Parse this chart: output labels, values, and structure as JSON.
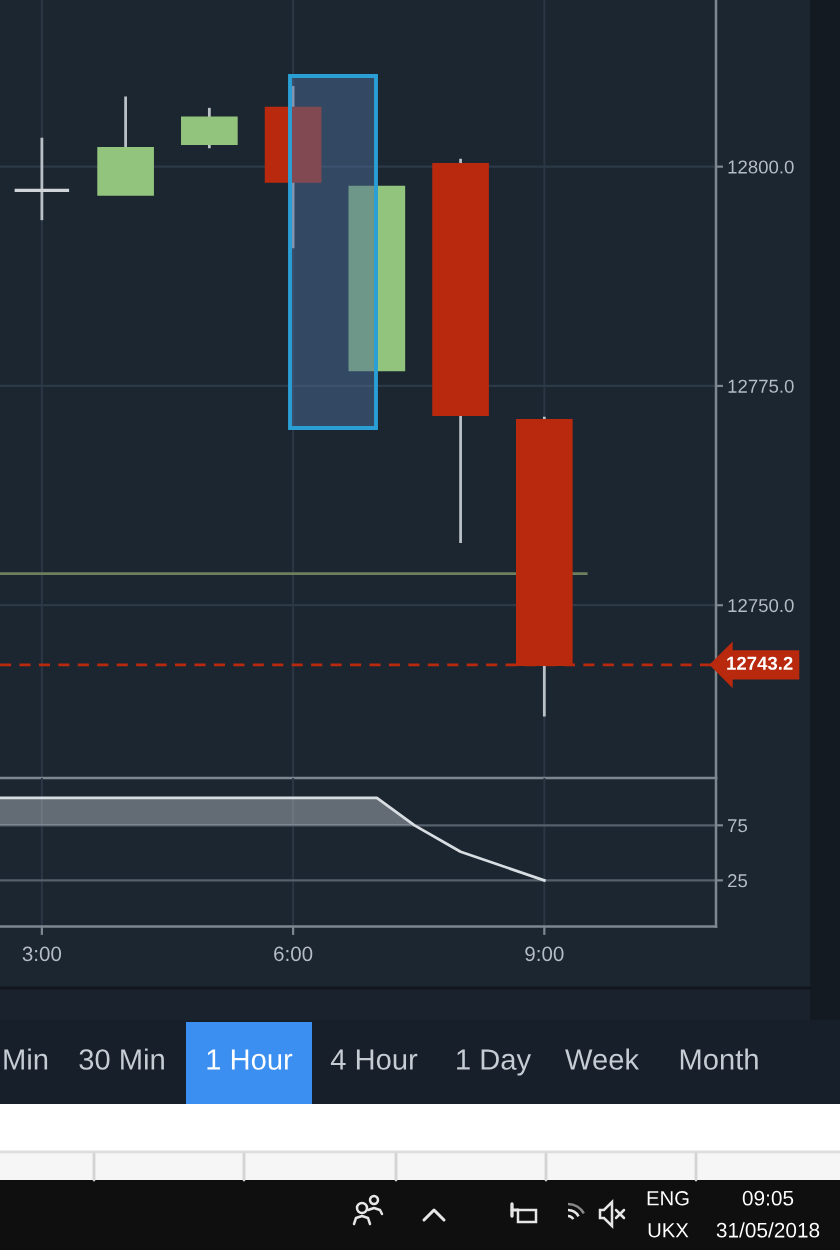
{
  "chart_data": [
    {
      "type": "candlestick",
      "x": [
        3,
        4,
        5,
        6,
        7,
        8,
        9
      ],
      "ohlc": [
        [
          12797.3,
          12803.3,
          12793.9,
          12797.3
        ],
        [
          12796.8,
          12808.0,
          12796.8,
          12802.1
        ],
        [
          12802.6,
          12806.7,
          12802.1,
          12805.6
        ],
        [
          12806.7,
          12809.2,
          12790.7,
          12798.3
        ],
        [
          12776.8,
          12797.7,
          12776.8,
          12797.7
        ],
        [
          12800.3,
          12800.9,
          12757.1,
          12771.7
        ],
        [
          12771.1,
          12771.5,
          12737.3,
          12743.2
        ]
      ],
      "colors": [
        "#d0d4d8",
        "#93c47d",
        "#93c47d",
        "#b8290d",
        "#93c47d",
        "#b8290d",
        "#b8290d"
      ],
      "series": [
        {
          "type": "line",
          "x": [
            2.5,
            9.5
          ],
          "values": [
            12753.6,
            12753.6
          ],
          "color": "#6f7f5e"
        }
      ],
      "ref_lines": [
        {
          "axis": "y",
          "value": 12743.2,
          "label": "12743.2",
          "color": "#b8290d",
          "line_style": "dashed"
        }
      ],
      "xlim": [
        2.5,
        11.05
      ],
      "ylim": [
        12730.3,
        12819.0
      ],
      "xticks": [
        {
          "value": 3,
          "label": null
        },
        {
          "value": 6,
          "label": null
        },
        {
          "value": 9,
          "label": null
        }
      ],
      "yticks": [
        {
          "value": 12750,
          "label": "12750.0"
        },
        {
          "value": 12775,
          "label": "12775.0"
        },
        {
          "value": 12800,
          "label": "12800.0"
        }
      ],
      "tick_labels": "y",
      "grid": true
    },
    {
      "type": "line",
      "x": [
        2.5,
        3,
        4,
        5,
        6,
        7,
        7.45,
        8,
        9
      ],
      "series": [
        {
          "color": "#d8dde2",
          "values": [
            100,
            100,
            100,
            100,
            100,
            100,
            75,
            51,
            25
          ],
          "lower": [
            75,
            75,
            75,
            75,
            75,
            75,
            75,
            null,
            null
          ],
          "upper": [
            100,
            100,
            100,
            100,
            100,
            100,
            75,
            null,
            null
          ]
        }
      ],
      "xlim": [
        2.5,
        11.05
      ],
      "ylim": [
        -17,
        118
      ],
      "xticks": [
        {
          "value": 3,
          "label": "3:00"
        },
        {
          "value": 6,
          "label": "6:00"
        },
        {
          "value": 9,
          "label": "9:00"
        }
      ],
      "yticks": [
        25,
        75
      ],
      "grid": true
    },
    {
      "type": "other",
      "annotations": [
        "Min",
        "30 Min",
        "1 Hour",
        "4 Hour",
        "1 Day",
        "Week",
        "Month",
        "ENG",
        "UKX",
        "09:05",
        "31/05/2018"
      ]
    }
  ]
}
